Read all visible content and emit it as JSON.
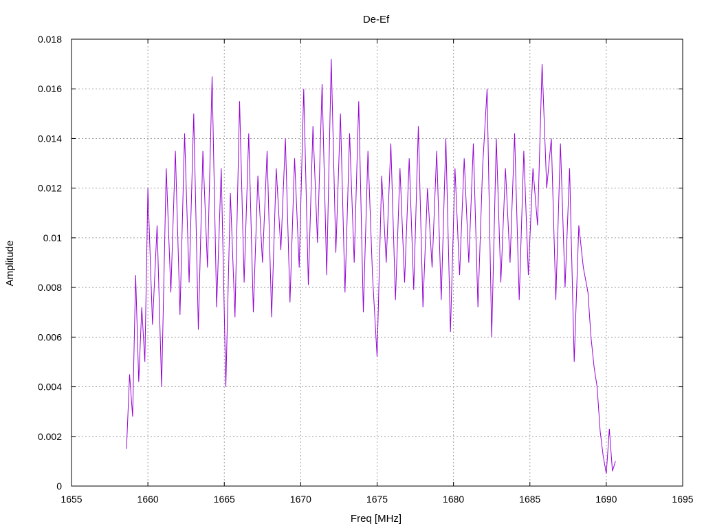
{
  "chart_data": {
    "type": "line",
    "title": "De-Ef",
    "xlabel": "Freq [MHz]",
    "ylabel": "Amplitude",
    "xlim": [
      1655,
      1695
    ],
    "ylim": [
      0,
      0.018
    ],
    "x_ticks": [
      "1655",
      "1660",
      "1665",
      "1670",
      "1675",
      "1680",
      "1685",
      "1690",
      "1695"
    ],
    "y_ticks": [
      "0",
      "0.002",
      "0.004",
      "0.006",
      "0.008",
      "0.01",
      "0.012",
      "0.014",
      "0.016",
      "0.018"
    ],
    "grid": true,
    "legend": "none",
    "colors": {
      "series": "#9400d3",
      "grid": "#a0a0a0",
      "axes": "#000000"
    },
    "series": [
      {
        "x": [
          1658.6,
          1658.8,
          1659.0,
          1659.2,
          1659.4,
          1659.6,
          1659.8,
          1660.0,
          1660.3,
          1660.6,
          1660.9,
          1661.2,
          1661.5,
          1661.8,
          1662.1,
          1662.4,
          1662.7,
          1663.0,
          1663.3,
          1663.6,
          1663.9,
          1664.2,
          1664.5,
          1664.8,
          1665.1,
          1665.4,
          1665.7,
          1666.0,
          1666.3,
          1666.6,
          1666.9,
          1667.2,
          1667.5,
          1667.8,
          1668.1,
          1668.4,
          1668.7,
          1669.0,
          1669.3,
          1669.6,
          1669.9,
          1670.2,
          1670.5,
          1670.8,
          1671.1,
          1671.4,
          1671.7,
          1672.0,
          1672.3,
          1672.6,
          1672.9,
          1673.2,
          1673.5,
          1673.8,
          1674.1,
          1674.4,
          1674.7,
          1675.0,
          1675.3,
          1675.6,
          1675.9,
          1676.2,
          1676.5,
          1676.8,
          1677.1,
          1677.4,
          1677.7,
          1678.0,
          1678.3,
          1678.6,
          1678.9,
          1679.2,
          1679.5,
          1679.8,
          1680.1,
          1680.4,
          1680.7,
          1681.0,
          1681.3,
          1681.6,
          1681.9,
          1682.2,
          1682.5,
          1682.8,
          1683.1,
          1683.4,
          1683.7,
          1684.0,
          1684.3,
          1684.6,
          1684.9,
          1685.2,
          1685.5,
          1685.8,
          1686.1,
          1686.4,
          1686.7,
          1687.0,
          1687.3,
          1687.6,
          1687.9,
          1688.2,
          1688.5,
          1688.8,
          1689.0,
          1689.2,
          1689.4,
          1689.6,
          1689.8,
          1690.0,
          1690.2,
          1690.4,
          1690.6
        ],
        "values": [
          0.0015,
          0.0045,
          0.0028,
          0.0085,
          0.0042,
          0.0072,
          0.005,
          0.012,
          0.0065,
          0.0105,
          0.004,
          0.0128,
          0.0078,
          0.0135,
          0.0069,
          0.0142,
          0.0082,
          0.015,
          0.0063,
          0.0135,
          0.0088,
          0.0165,
          0.0072,
          0.0128,
          0.004,
          0.0118,
          0.0068,
          0.0155,
          0.0082,
          0.0142,
          0.007,
          0.0125,
          0.009,
          0.0135,
          0.0068,
          0.0128,
          0.0095,
          0.014,
          0.0074,
          0.0132,
          0.0088,
          0.016,
          0.0081,
          0.0145,
          0.0098,
          0.0162,
          0.0085,
          0.0172,
          0.0094,
          0.015,
          0.0078,
          0.0142,
          0.009,
          0.0155,
          0.007,
          0.0135,
          0.0085,
          0.0052,
          0.0125,
          0.009,
          0.0138,
          0.0075,
          0.0128,
          0.0082,
          0.0132,
          0.0079,
          0.0145,
          0.0072,
          0.012,
          0.0088,
          0.0135,
          0.0075,
          0.014,
          0.0062,
          0.0128,
          0.0085,
          0.0132,
          0.009,
          0.0138,
          0.0072,
          0.0128,
          0.016,
          0.006,
          0.014,
          0.0082,
          0.0128,
          0.009,
          0.0142,
          0.0075,
          0.0135,
          0.0085,
          0.0128,
          0.0105,
          0.017,
          0.012,
          0.014,
          0.0075,
          0.0138,
          0.008,
          0.0128,
          0.005,
          0.0105,
          0.0088,
          0.0078,
          0.006,
          0.0048,
          0.004,
          0.0022,
          0.0012,
          0.0005,
          0.0023,
          0.0006,
          0.001
        ]
      }
    ]
  }
}
